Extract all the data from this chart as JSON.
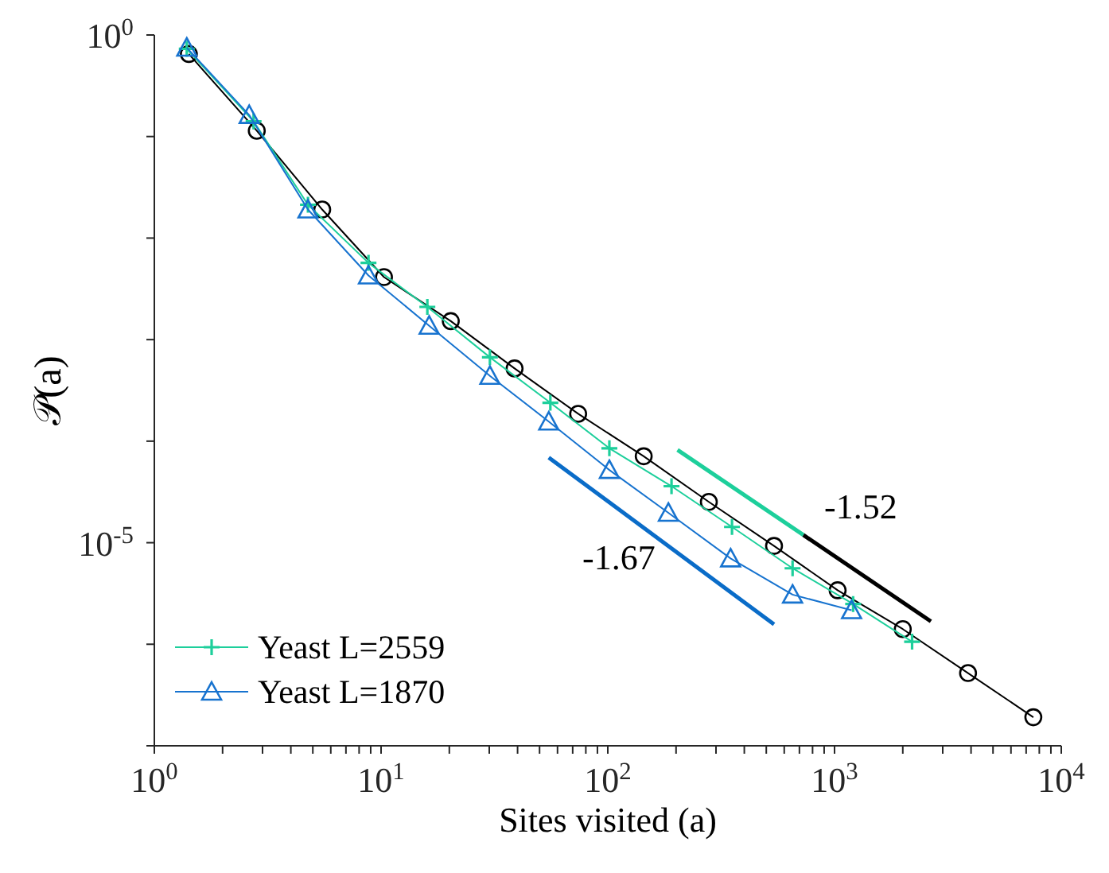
{
  "chart_data": {
    "type": "line",
    "xlabel": "Sites visited (a)",
    "ylabel": "𝒫(a)",
    "log": "xy",
    "xlim": [
      1,
      10000
    ],
    "ylim": [
      1e-07,
      1
    ],
    "xticks": [
      {
        "value": 1,
        "label": "10$^{0}$"
      },
      {
        "value": 2,
        "label": null
      },
      {
        "value": 3,
        "label": null
      },
      {
        "value": 4,
        "label": null
      },
      {
        "value": 5,
        "label": null
      },
      {
        "value": 6,
        "label": null
      },
      {
        "value": 7,
        "label": null
      },
      {
        "value": 8,
        "label": null
      },
      {
        "value": 9,
        "label": null
      },
      {
        "value": 10,
        "label": "10$^{1}$"
      },
      {
        "value": 20,
        "label": null
      },
      {
        "value": 30,
        "label": null
      },
      {
        "value": 40,
        "label": null
      },
      {
        "value": 50,
        "label": null
      },
      {
        "value": 60,
        "label": null
      },
      {
        "value": 70,
        "label": null
      },
      {
        "value": 80,
        "label": null
      },
      {
        "value": 90,
        "label": null
      },
      {
        "value": 100,
        "label": "10$^{2}$"
      },
      {
        "value": 200,
        "label": null
      },
      {
        "value": 300,
        "label": null
      },
      {
        "value": 400,
        "label": null
      },
      {
        "value": 500,
        "label": null
      },
      {
        "value": 600,
        "label": null
      },
      {
        "value": 700,
        "label": null
      },
      {
        "value": 800,
        "label": null
      },
      {
        "value": 900,
        "label": null
      },
      {
        "value": 1000,
        "label": "10$^{3}$"
      },
      {
        "value": 2000,
        "label": null
      },
      {
        "value": 3000,
        "label": null
      },
      {
        "value": 4000,
        "label": null
      },
      {
        "value": 5000,
        "label": null
      },
      {
        "value": 6000,
        "label": null
      },
      {
        "value": 7000,
        "label": null
      },
      {
        "value": 8000,
        "label": null
      },
      {
        "value": 9000,
        "label": null
      },
      {
        "value": 10000,
        "label": "10$^{4}$"
      }
    ],
    "yticks": [
      {
        "value": 1,
        "label": "10$^{0}$"
      },
      {
        "value": 0.1,
        "label": null
      },
      {
        "value": 0.01,
        "label": null
      },
      {
        "value": 0.001,
        "label": null
      },
      {
        "value": 0.0001,
        "label": null
      },
      {
        "value": 1e-05,
        "label": "10$^{-5}$"
      },
      {
        "value": 1e-06,
        "label": null
      },
      {
        "value": 1e-07,
        "label": null
      }
    ],
    "grid": false,
    "legend": "bottom left",
    "series": [
      {
        "color": "#000000",
        "marker": "circle",
        "x": [
          1.42,
          2.83,
          5.5,
          10.3,
          20.3,
          38.8,
          74,
          144,
          279,
          541,
          1032,
          2000,
          3880,
          7530
        ],
        "values": [
          0.65,
          0.114,
          0.0191,
          0.00413,
          0.00152,
          0.00052,
          0.000186,
          7.1e-05,
          2.52e-05,
          9.3e-06,
          3.4e-06,
          1.41e-06,
          5.2e-07,
          1.91e-07
        ]
      },
      {
        "name": "Yeast L=2559",
        "color": "#1dcf9b",
        "marker": "cross",
        "x": [
          1.39,
          2.74,
          4.76,
          8.8,
          16.0,
          30.2,
          55.8,
          101.6,
          191,
          353,
          653,
          1208,
          2198
        ],
        "values": [
          0.73,
          0.141,
          0.0213,
          0.0057,
          0.0021,
          0.00067,
          0.000239,
          8.5e-05,
          3.6e-05,
          1.43e-05,
          5.6e-06,
          2.49e-06,
          1.06e-06
        ]
      },
      {
        "name": "Yeast L=1870",
        "color": "#1773cf",
        "marker": "triangle",
        "x": [
          1.39,
          2.62,
          4.76,
          8.8,
          16.3,
          30.2,
          54.9,
          101.6,
          185,
          348,
          653,
          1189
        ],
        "values": [
          0.75,
          0.163,
          0.0191,
          0.00428,
          0.00137,
          0.00044,
          0.000156,
          5.2e-05,
          1.97e-05,
          7e-06,
          3.08e-06,
          2.16e-06
        ]
      },
      {
        "type": "line",
        "color": "#1dcf9b",
        "marker": "none",
        "x": [
          203,
          729
        ],
        "values": [
          8.2e-05,
          1.19e-05
        ]
      },
      {
        "type": "line",
        "color": "#000000",
        "marker": "none",
        "x": [
          729,
          2660
        ],
        "values": [
          1.19e-05,
          1.68e-06
        ]
      },
      {
        "type": "line",
        "color": "#0a6cc8",
        "marker": "none",
        "x": [
          54.9,
          541
        ],
        "values": [
          6.9e-05,
          1.57e-06
        ]
      }
    ],
    "annotations": [
      "-1.52",
      "-1.67"
    ]
  }
}
